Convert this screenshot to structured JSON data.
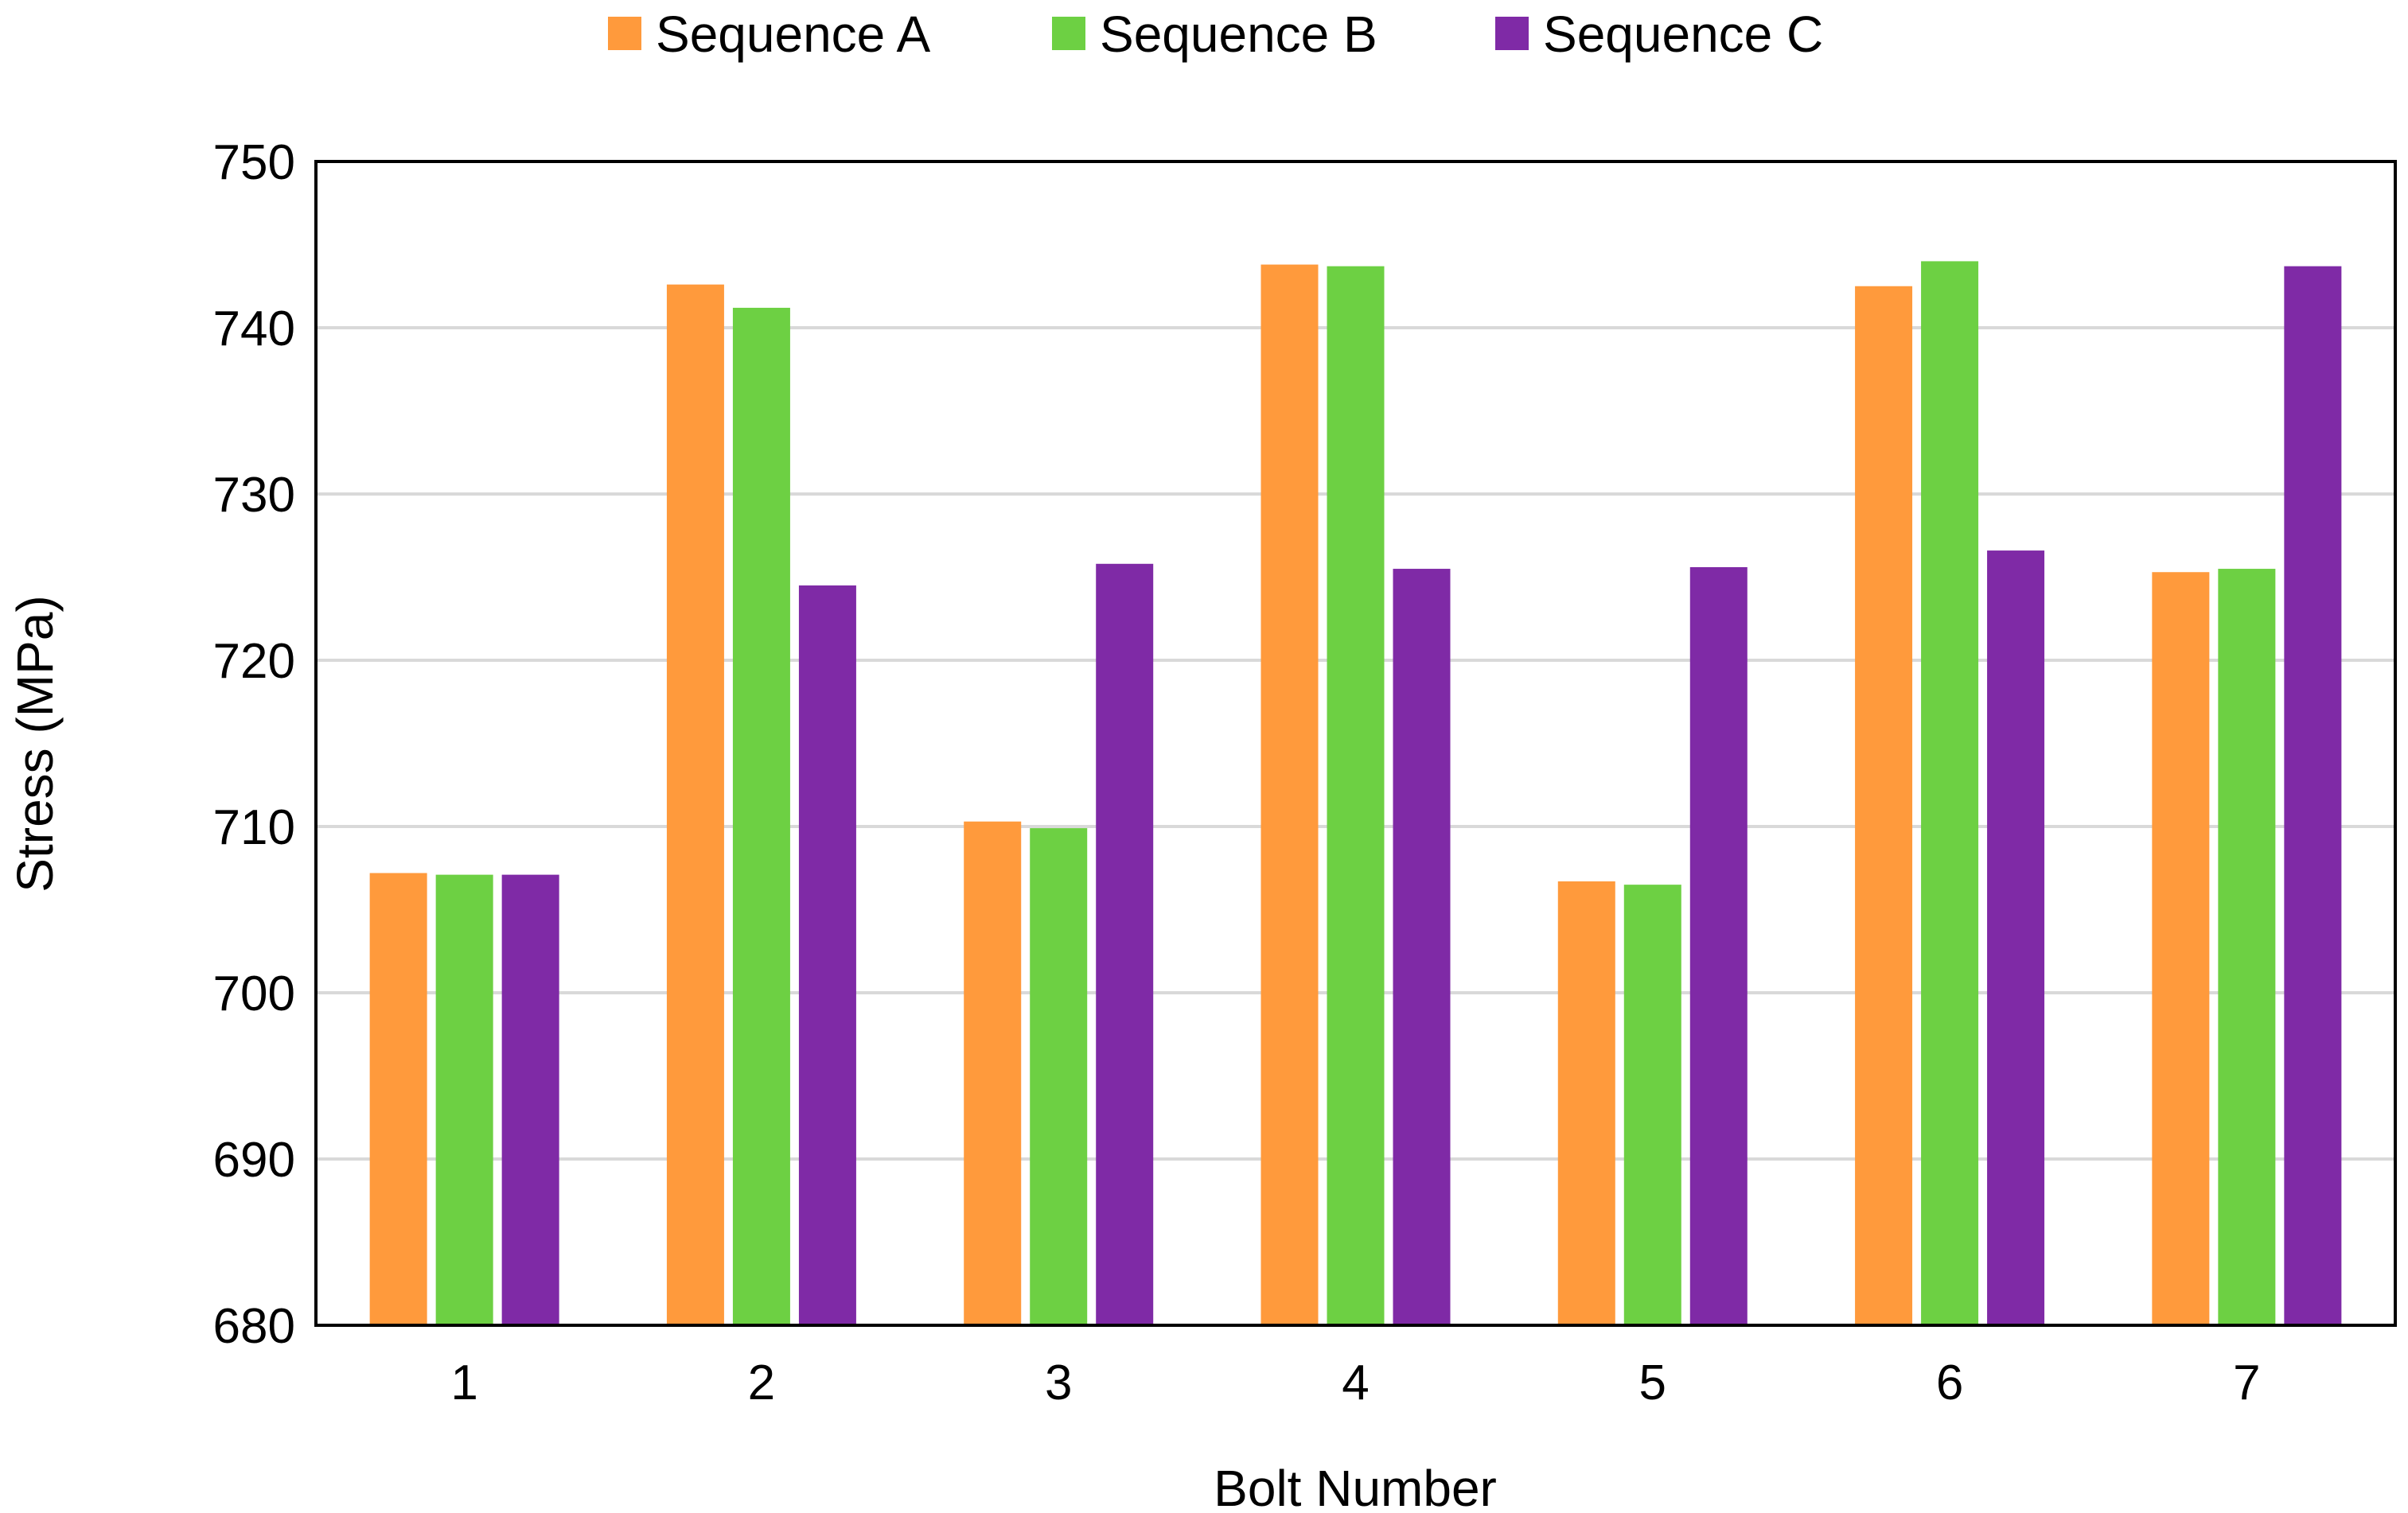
{
  "chart_data": {
    "type": "bar",
    "title": "",
    "xlabel": "Bolt Number",
    "ylabel": "Stress (MPa)",
    "ylim": [
      680,
      750
    ],
    "yticks": [
      680,
      690,
      700,
      710,
      720,
      730,
      740,
      750
    ],
    "grid": true,
    "legend_position": "top-center",
    "categories": [
      "1",
      "2",
      "3",
      "4",
      "5",
      "6",
      "7"
    ],
    "series": [
      {
        "name": "Sequence A",
        "color": "#FF9A3C",
        "values": [
          707.2,
          742.6,
          710.3,
          743.8,
          706.7,
          742.5,
          725.3
        ]
      },
      {
        "name": "Sequence B",
        "color": "#6DD043",
        "values": [
          707.1,
          741.2,
          709.9,
          743.7,
          706.5,
          744.0,
          725.5
        ]
      },
      {
        "name": "Sequence C",
        "color": "#7F2AA6",
        "values": [
          707.1,
          724.5,
          725.8,
          725.5,
          725.6,
          726.6,
          743.7
        ]
      }
    ]
  },
  "colors": {
    "grid": "#D9D9D9",
    "axis": "#000000"
  }
}
